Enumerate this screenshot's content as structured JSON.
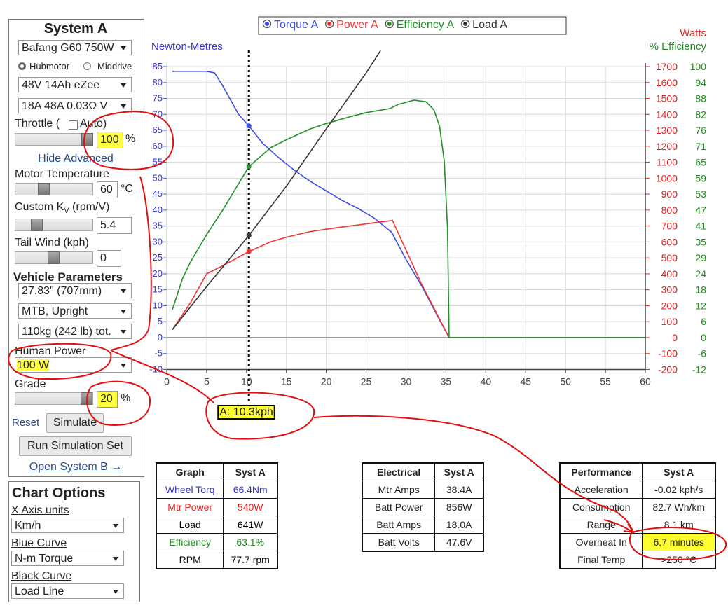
{
  "sidebar": {
    "title": "System A",
    "motor": "Bafang G60 750W",
    "motor_types": [
      "Hubmotor",
      "Middrive"
    ],
    "battery": "48V 14Ah eZee",
    "controller": "18A 48A 0.03Ω V",
    "throttle_label": "Throttle (",
    "auto_label": "Auto)",
    "throttle": "100",
    "throttle_unit": "%",
    "hide_advanced": "Hide Advanced",
    "motor_temp_label": "Motor Temperature",
    "motor_temp": "60",
    "motor_temp_unit": "°C",
    "kv_label": "Custom K",
    "kv_sub": "V",
    "kv_unit": " (rpm/V)",
    "kv": "5.4",
    "tailwind_label": "Tail Wind (kph)",
    "tailwind": "0",
    "vehicle_title": "Vehicle Parameters",
    "wheel": "27.83\" (707mm)",
    "frame": "MTB, Upright",
    "mass": "110kg (242 lb) tot.",
    "human_power_label": "Human Power",
    "human_power": "100 W",
    "grade_label": "Grade",
    "grade": "20",
    "grade_unit": "%",
    "reset": "Reset",
    "simulate": "Simulate",
    "run_set": "Run Simulation Set",
    "open_b": "Open System B →"
  },
  "chart_options": {
    "title": "Chart Options",
    "x_units_label": "X Axis units",
    "x_units": "Km/h",
    "blue_label": "Blue Curve",
    "blue": "N-m Torque",
    "black_label": "Black Curve",
    "black": "Load Line"
  },
  "chart_data": {
    "type": "line",
    "y_label": "Newton-Metres",
    "y2_label": "Watts",
    "y3_label": "% Efficiency",
    "grid": true,
    "xlim": [
      0,
      60
    ],
    "xticks": [
      0,
      5,
      10,
      15,
      20,
      25,
      30,
      35,
      40,
      45,
      50,
      55,
      60
    ],
    "ylim": [
      -10,
      85
    ],
    "yticks": [
      -10,
      -5,
      0,
      5,
      10,
      15,
      20,
      25,
      30,
      35,
      40,
      45,
      50,
      55,
      60,
      65,
      70,
      75,
      80,
      85
    ],
    "y2lim": [
      -200,
      1700
    ],
    "y2ticks": [
      -200,
      -100,
      0,
      100,
      200,
      300,
      400,
      500,
      600,
      700,
      800,
      900,
      1000,
      1100,
      1200,
      1300,
      1400,
      1500,
      1600,
      1700
    ],
    "y3lim": [
      -11.76,
      100
    ],
    "y3ticks": [
      {
        "value": -11.76,
        "label": "-12"
      },
      {
        "value": -5.88,
        "label": "-6"
      },
      0,
      {
        "value": 5.88,
        "label": "6"
      },
      {
        "value": 11.76,
        "label": "12"
      },
      {
        "value": 17.65,
        "label": "18"
      },
      {
        "value": 23.53,
        "label": "24"
      },
      {
        "value": 29.41,
        "label": "29"
      },
      {
        "value": 35.29,
        "label": "35"
      },
      {
        "value": 41.18,
        "label": "41"
      },
      {
        "value": 47.06,
        "label": "47"
      },
      {
        "value": 52.94,
        "label": "53"
      },
      {
        "value": 58.82,
        "label": "59"
      },
      {
        "value": 64.71,
        "label": "65"
      },
      {
        "value": 70.59,
        "label": "71"
      },
      {
        "value": 76.47,
        "label": "76"
      },
      {
        "value": 82.35,
        "label": "82"
      },
      {
        "value": 88.24,
        "label": "88"
      },
      {
        "value": 94.12,
        "label": "94"
      },
      100
    ],
    "cursor": {
      "x": 10.3,
      "label": "A: 10.3kph"
    },
    "series": [
      {
        "name": "Torque A",
        "color": "#3d4fe0",
        "axis": "y",
        "x": [
          0.7,
          2,
          3,
          4,
          5,
          6,
          7,
          8,
          9,
          10.3,
          12,
          14,
          16,
          18,
          20,
          22,
          24,
          26,
          28.2,
          30,
          32,
          34,
          35.4,
          40,
          45,
          50,
          55,
          60
        ],
        "values": [
          83.5,
          83.5,
          83.5,
          83.5,
          83.5,
          83,
          79,
          74.5,
          70,
          66.4,
          61,
          56.5,
          52.5,
          49,
          46,
          43,
          40.5,
          37.5,
          33,
          24.5,
          16,
          6.5,
          0,
          0,
          0,
          0,
          0,
          0
        ]
      },
      {
        "name": "Power A",
        "color": "#ee3535",
        "axis": "y2",
        "x": [
          0.7,
          3,
          5,
          7,
          10.3,
          13,
          15,
          18,
          20,
          23,
          26,
          28.3,
          32,
          35.4,
          60
        ],
        "values": [
          50,
          220,
          400,
          450,
          540,
          600,
          630,
          665,
          680,
          700,
          720,
          735,
          330,
          0,
          0
        ]
      },
      {
        "name": "Efficiency A",
        "color": "#22902a",
        "axis": "y3",
        "x": [
          0.7,
          2,
          3,
          5,
          7,
          10.3,
          13,
          15,
          18,
          20,
          23,
          25,
          28,
          29,
          31,
          32.5,
          33.5,
          34.2,
          34.8,
          35.2,
          35.4,
          60
        ],
        "values": [
          10.3,
          22,
          28,
          38,
          47,
          63.1,
          70,
          73,
          77,
          79,
          81.5,
          83,
          84.5,
          86,
          87.6,
          87,
          84,
          78,
          65,
          40,
          0,
          0
        ]
      },
      {
        "name": "Load A",
        "color": "#333333",
        "axis": "y2",
        "x": [
          0.7,
          5,
          10.3,
          15,
          20,
          25,
          26.8
        ],
        "values": [
          50,
          320,
          641,
          950,
          1310,
          1660,
          1800
        ]
      }
    ]
  },
  "tables": [
    {
      "header": [
        "Graph",
        "Syst A"
      ],
      "row_colors": [
        "#3333cc",
        "#e02020",
        "#000000",
        "#1e8c1e",
        "#000000"
      ],
      "rows": [
        [
          "Wheel Torq",
          "66.4Nm"
        ],
        [
          "Mtr Power",
          "540W"
        ],
        [
          "Load",
          "641W"
        ],
        [
          "Efficiency",
          "63.1%"
        ],
        [
          "RPM",
          "77.7 rpm"
        ]
      ]
    },
    {
      "header": [
        "Electrical",
        "Syst A"
      ],
      "rows": [
        [
          "Mtr Amps",
          "38.4A"
        ],
        [
          "Batt Power",
          "856W"
        ],
        [
          "Batt Amps",
          "18.0A"
        ],
        [
          "Batt Volts",
          "47.6V"
        ]
      ]
    },
    {
      "header": [
        "Performance",
        "Syst A"
      ],
      "rows": [
        [
          "Acceleration",
          "-0.02 kph/s"
        ],
        [
          "Consumption",
          "82.7 Wh/km"
        ],
        [
          "Range",
          "8.1 km"
        ],
        [
          "Overheat In",
          "6.7 minutes"
        ],
        [
          "Final Temp",
          ">250 °C"
        ]
      ]
    }
  ]
}
